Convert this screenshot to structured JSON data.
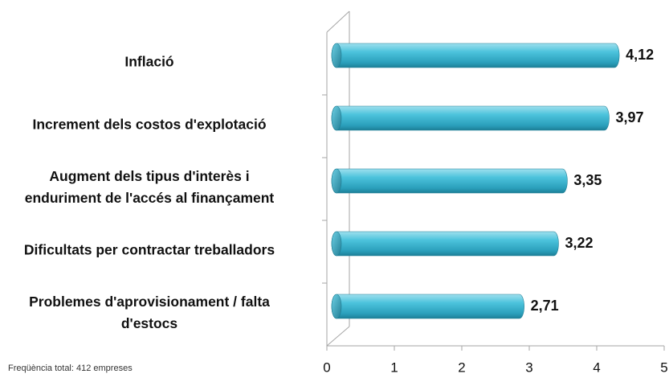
{
  "chart_data": {
    "type": "bar",
    "orientation": "horizontal",
    "categories": [
      "Inflació",
      "Increment dels costos d'explotació",
      "Augment dels tipus d'interès i\nenduriment de l'accés al finançament",
      "Dificultats per contractar treballadors",
      "Problemes d'aprovisionament / falta\nd'estocs"
    ],
    "values": [
      4.12,
      3.97,
      3.35,
      3.22,
      2.71
    ],
    "value_labels": [
      "4,12",
      "3,97",
      "3,35",
      "3,22",
      "2,71"
    ],
    "color": "#3cb8d3",
    "xlim": [
      0,
      5
    ],
    "xticks": [
      0,
      1,
      2,
      3,
      4,
      5
    ]
  },
  "footnote": "Freqüència total: 412 empreses"
}
